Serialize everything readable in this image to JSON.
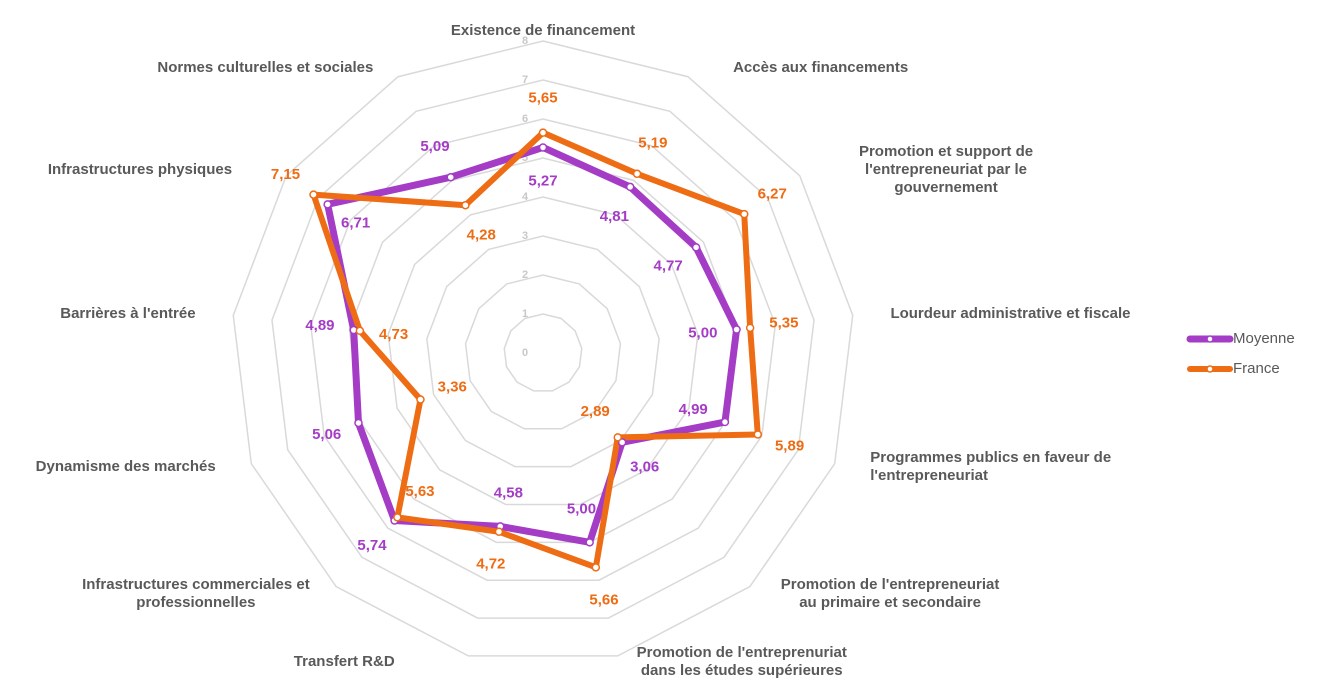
{
  "chart_data": {
    "type": "radar",
    "categories": [
      "Existence de financement",
      "Accès aux financements",
      "Promotion et support de l'entrepreneuriat par le gouvernement",
      "Lourdeur administrative et fiscale",
      "Programmes publics en faveur de l'entrepreneuriat",
      "Promotion de l'entrepreneuriat au primaire et secondaire",
      "Promotion de l'entreprenuriat dans les études supérieures",
      "Transfert R&D",
      "Infrastructures commerciales et professionnelles",
      "Dynamisme des marchés",
      "Barrières à l'entrée",
      "Infrastructures physiques",
      "Normes culturelles et sociales"
    ],
    "series": [
      {
        "name": "Moyenne",
        "color": "#a43cc6",
        "values": [
          5.27,
          4.81,
          4.77,
          5.0,
          4.99,
          3.06,
          5.0,
          4.58,
          5.74,
          5.06,
          4.89,
          6.71,
          5.09
        ],
        "value_labels": [
          "5,27",
          "4,81",
          "4,77",
          "5,00",
          "4,99",
          "3,06",
          "5,00",
          "4,58",
          "5,74",
          "5,06",
          "4,89",
          "6,71",
          "5,09"
        ]
      },
      {
        "name": "France",
        "color": "#ee6c14",
        "values": [
          5.65,
          5.19,
          6.27,
          5.35,
          5.89,
          2.89,
          5.66,
          4.72,
          5.63,
          3.36,
          4.73,
          7.15,
          4.28
        ],
        "value_labels": [
          "5,65",
          "5,19",
          "6,27",
          "5,35",
          "5,89",
          "2,89",
          "5,66",
          "4,72",
          "5,63",
          "3,36",
          "4,73",
          "7,15",
          "4,28"
        ]
      }
    ],
    "ylim": [
      0,
      8
    ],
    "yticks": [
      0,
      1,
      2,
      3,
      4,
      5,
      6,
      7,
      8
    ],
    "grid": true,
    "legend": "right"
  }
}
